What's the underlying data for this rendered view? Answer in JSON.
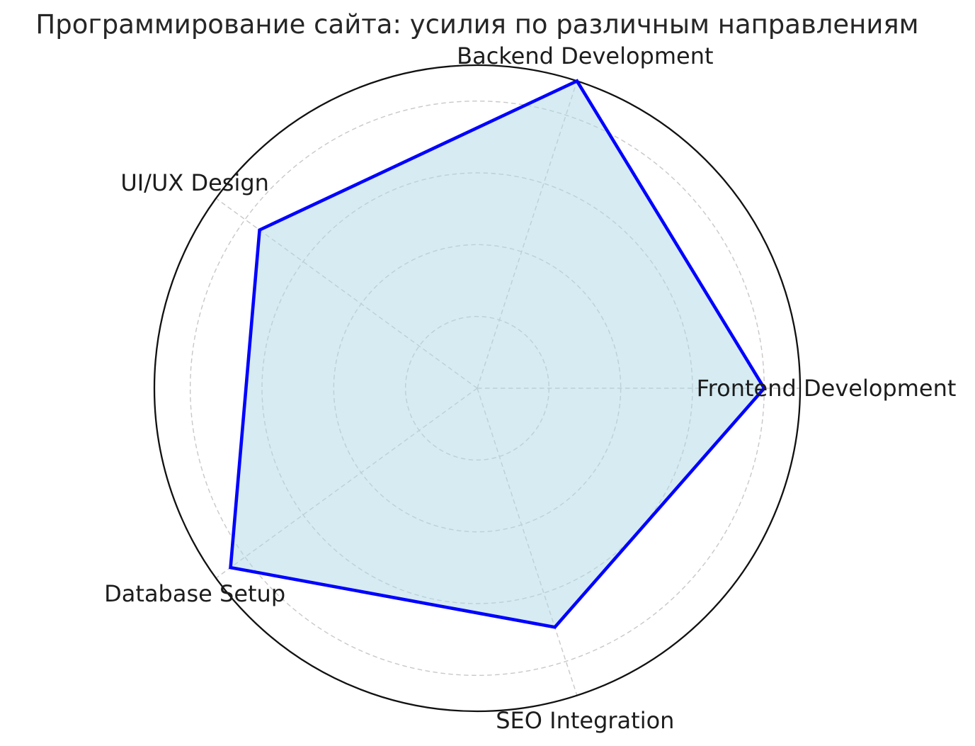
{
  "figure": {
    "title": "Программирование сайта: усилия по различным направлениям"
  },
  "chart_data": {
    "type": "radar",
    "title": "Программирование сайта: усилия по различным направлениям",
    "categories": [
      "Frontend Development",
      "Backend Development",
      "UI/UX Design",
      "Database Setup",
      "SEO Integration"
    ],
    "values": [
      80,
      90,
      75,
      85,
      70
    ],
    "axes_angles_deg": [
      0,
      72,
      144,
      216,
      288
    ],
    "axis": {
      "r_min": 0,
      "r_max": 90,
      "gridline_values": [
        20,
        40,
        60,
        80
      ],
      "grid_style": "dashed",
      "radial_tick_labels_visible": false,
      "direction": "counterclockwise",
      "start_angle_deg": 0
    },
    "legend": {
      "visible": false
    },
    "colors": {
      "line": "#0000FF",
      "fill": "#ADD8E6",
      "fill_opacity": 0.5,
      "gridline": "#C8C8C8",
      "axis_ring": "#111111",
      "label_text": "#1C1C1C",
      "title_text": "#262626",
      "background": "#FFFFFF"
    }
  }
}
